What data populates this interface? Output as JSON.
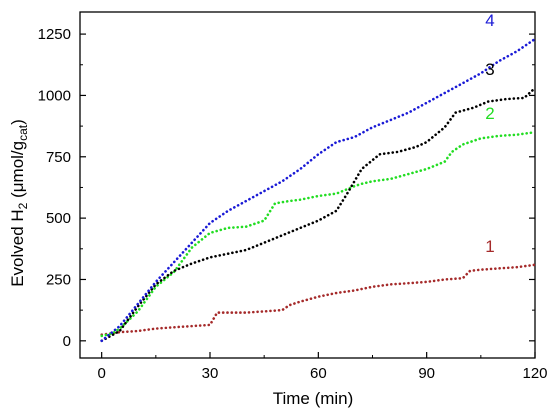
{
  "chart_data": {
    "type": "line",
    "title": "",
    "xlabel": "Time (min)",
    "ylabel_main": "Evolved H",
    "ylabel_sub1": "2",
    "ylabel_mid": " (μmol/g",
    "ylabel_sub2": "cat",
    "ylabel_end": ")",
    "xlim": [
      -6,
      120
    ],
    "ylim": [
      -70,
      1340
    ],
    "xticks": [
      0,
      30,
      60,
      90,
      120
    ],
    "yticks": [
      0,
      250,
      500,
      750,
      1000,
      1250
    ],
    "xtick_labels": [
      "0",
      "30",
      "60",
      "90",
      "120"
    ],
    "ytick_labels": [
      "0",
      "250",
      "500",
      "750",
      "1000",
      "1250"
    ],
    "grid": false,
    "legend": "none",
    "line_style": "dotted",
    "series": [
      {
        "label": "1",
        "color": "#a52a2a",
        "points": [
          [
            0,
            25
          ],
          [
            5,
            35
          ],
          [
            10,
            40
          ],
          [
            15,
            50
          ],
          [
            20,
            55
          ],
          [
            25,
            60
          ],
          [
            30,
            65
          ],
          [
            32,
            115
          ],
          [
            35,
            115
          ],
          [
            40,
            115
          ],
          [
            45,
            120
          ],
          [
            50,
            125
          ],
          [
            52,
            145
          ],
          [
            55,
            160
          ],
          [
            60,
            180
          ],
          [
            65,
            195
          ],
          [
            70,
            205
          ],
          [
            75,
            220
          ],
          [
            80,
            230
          ],
          [
            85,
            235
          ],
          [
            90,
            240
          ],
          [
            95,
            250
          ],
          [
            100,
            255
          ],
          [
            102,
            285
          ],
          [
            105,
            290
          ],
          [
            110,
            295
          ],
          [
            115,
            300
          ],
          [
            120,
            310
          ]
        ]
      },
      {
        "label": "2",
        "color": "#22dd22",
        "points": [
          [
            0,
            20
          ],
          [
            3,
            30
          ],
          [
            5,
            50
          ],
          [
            10,
            120
          ],
          [
            15,
            220
          ],
          [
            20,
            280
          ],
          [
            25,
            380
          ],
          [
            30,
            440
          ],
          [
            35,
            460
          ],
          [
            40,
            465
          ],
          [
            45,
            490
          ],
          [
            48,
            560
          ],
          [
            52,
            570
          ],
          [
            55,
            575
          ],
          [
            60,
            590
          ],
          [
            65,
            600
          ],
          [
            70,
            630
          ],
          [
            72,
            640
          ],
          [
            75,
            650
          ],
          [
            80,
            660
          ],
          [
            85,
            680
          ],
          [
            90,
            700
          ],
          [
            95,
            730
          ],
          [
            97,
            770
          ],
          [
            100,
            800
          ],
          [
            105,
            825
          ],
          [
            110,
            835
          ],
          [
            115,
            840
          ],
          [
            120,
            850
          ]
        ]
      },
      {
        "label": "3",
        "color": "#000000",
        "points": [
          [
            0,
            0
          ],
          [
            5,
            40
          ],
          [
            10,
            140
          ],
          [
            15,
            230
          ],
          [
            20,
            285
          ],
          [
            25,
            315
          ],
          [
            30,
            340
          ],
          [
            35,
            355
          ],
          [
            40,
            370
          ],
          [
            45,
            400
          ],
          [
            50,
            430
          ],
          [
            55,
            460
          ],
          [
            60,
            490
          ],
          [
            65,
            530
          ],
          [
            68,
            600
          ],
          [
            72,
            700
          ],
          [
            77,
            760
          ],
          [
            82,
            770
          ],
          [
            87,
            790
          ],
          [
            90,
            810
          ],
          [
            95,
            870
          ],
          [
            98,
            930
          ],
          [
            103,
            950
          ],
          [
            107,
            975
          ],
          [
            112,
            985
          ],
          [
            117,
            990
          ],
          [
            120,
            1030
          ]
        ]
      },
      {
        "label": "4",
        "color": "#1a1ad6",
        "points": [
          [
            0,
            0
          ],
          [
            5,
            60
          ],
          [
            10,
            150
          ],
          [
            15,
            240
          ],
          [
            20,
            320
          ],
          [
            25,
            400
          ],
          [
            30,
            480
          ],
          [
            35,
            530
          ],
          [
            40,
            570
          ],
          [
            45,
            610
          ],
          [
            50,
            650
          ],
          [
            55,
            700
          ],
          [
            60,
            760
          ],
          [
            65,
            810
          ],
          [
            70,
            830
          ],
          [
            75,
            870
          ],
          [
            80,
            900
          ],
          [
            85,
            930
          ],
          [
            90,
            970
          ],
          [
            95,
            1010
          ],
          [
            100,
            1050
          ],
          [
            105,
            1090
          ],
          [
            110,
            1140
          ],
          [
            115,
            1180
          ],
          [
            120,
            1230
          ]
        ]
      }
    ]
  }
}
